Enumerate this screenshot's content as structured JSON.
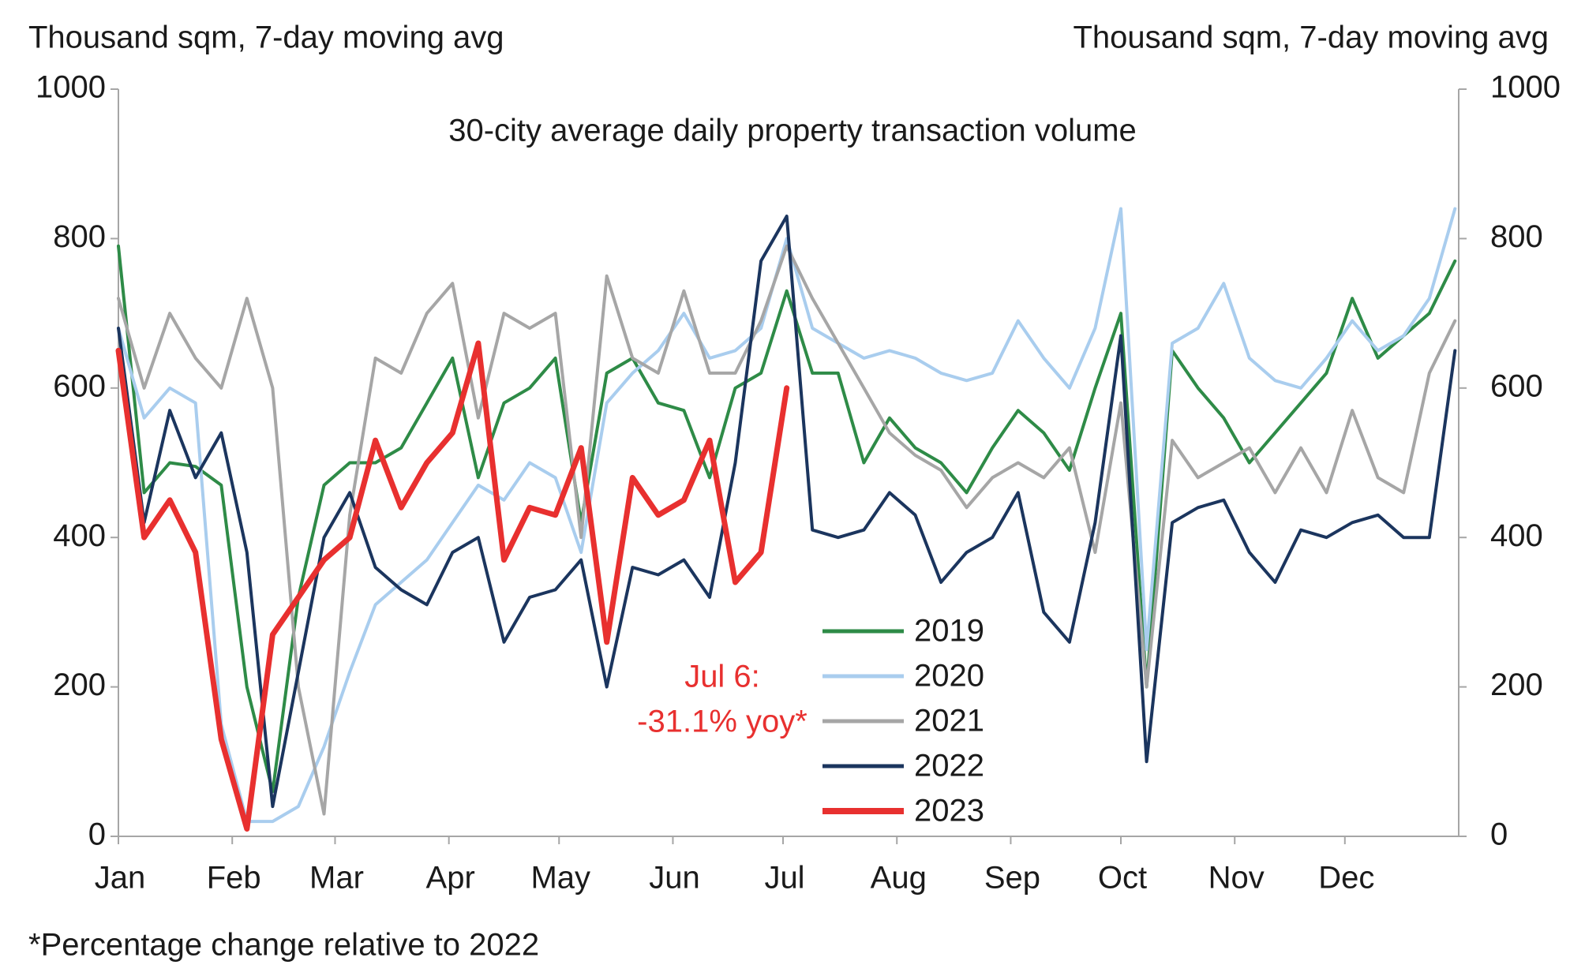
{
  "chart_data": {
    "type": "line",
    "title": "30-city average daily property transaction volume",
    "y_label": "Thousand sqm, 7-day moving avg",
    "y2_label": "Thousand sqm, 7-day moving avg",
    "footnote": "*Percentage change relative to 2022",
    "annotation": [
      "Jul 6:",
      "-31.1% yoy*"
    ],
    "annotation_color": "#e8302f",
    "xlim": [
      0,
      365
    ],
    "xticks": [
      {
        "value": 0,
        "label": "Jan"
      },
      {
        "value": 31,
        "label": "Feb"
      },
      {
        "value": 59,
        "label": "Mar"
      },
      {
        "value": 90,
        "label": "Apr"
      },
      {
        "value": 120,
        "label": "May"
      },
      {
        "value": 151,
        "label": "Jun"
      },
      {
        "value": 181,
        "label": "Jul"
      },
      {
        "value": 212,
        "label": "Aug"
      },
      {
        "value": 243,
        "label": "Sep"
      },
      {
        "value": 273,
        "label": "Oct"
      },
      {
        "value": 304,
        "label": "Nov"
      },
      {
        "value": 334,
        "label": "Dec"
      }
    ],
    "ylim": [
      0,
      1000
    ],
    "yticks": [
      0,
      200,
      400,
      600,
      800,
      1000
    ],
    "y2lim": [
      0,
      1000
    ],
    "y2ticks": [
      0,
      200,
      400,
      600,
      800,
      1000
    ],
    "x": [
      0,
      7,
      14,
      21,
      28,
      35,
      42,
      49,
      56,
      63,
      70,
      77,
      84,
      91,
      98,
      105,
      112,
      119,
      126,
      133,
      140,
      147,
      154,
      161,
      168,
      175,
      182,
      189,
      196,
      203,
      210,
      217,
      224,
      231,
      238,
      245,
      252,
      259,
      266,
      273,
      280,
      287,
      294,
      301,
      308,
      315,
      322,
      329,
      336,
      343,
      350,
      357,
      364
    ],
    "series": [
      {
        "name": "2019",
        "color": "#2e8b47",
        "values": [
          790,
          460,
          500,
          495,
          470,
          200,
          60,
          320,
          470,
          500,
          500,
          520,
          580,
          640,
          480,
          580,
          600,
          640,
          420,
          620,
          640,
          580,
          570,
          480,
          600,
          620,
          730,
          620,
          620,
          500,
          560,
          520,
          500,
          460,
          520,
          570,
          540,
          490,
          600,
          700,
          200,
          650,
          600,
          560,
          500,
          540,
          580,
          620,
          720,
          640,
          670,
          700,
          770
        ]
      },
      {
        "name": "2020",
        "color": "#a9cdee",
        "values": [
          680,
          560,
          600,
          580,
          150,
          20,
          20,
          40,
          120,
          220,
          310,
          340,
          370,
          420,
          470,
          450,
          500,
          480,
          380,
          580,
          620,
          650,
          700,
          640,
          650,
          680,
          800,
          680,
          660,
          640,
          650,
          640,
          620,
          610,
          620,
          690,
          640,
          600,
          680,
          840,
          250,
          660,
          680,
          740,
          640,
          610,
          600,
          640,
          690,
          650,
          670,
          720,
          840
        ]
      },
      {
        "name": "2021",
        "color": "#a6a6a6",
        "values": [
          720,
          600,
          700,
          640,
          600,
          720,
          600,
          200,
          30,
          430,
          640,
          620,
          700,
          740,
          560,
          700,
          680,
          700,
          400,
          750,
          640,
          620,
          730,
          620,
          620,
          690,
          790,
          720,
          660,
          600,
          540,
          510,
          490,
          440,
          480,
          500,
          480,
          520,
          380,
          580,
          200,
          530,
          480,
          500,
          520,
          460,
          520,
          460,
          570,
          480,
          460,
          620,
          690
        ]
      },
      {
        "name": "2022",
        "color": "#1b355e",
        "values": [
          680,
          420,
          570,
          480,
          540,
          380,
          40,
          220,
          400,
          460,
          360,
          330,
          310,
          380,
          400,
          260,
          320,
          330,
          370,
          200,
          360,
          350,
          370,
          320,
          500,
          770,
          830,
          410,
          400,
          410,
          460,
          430,
          340,
          380,
          400,
          460,
          300,
          260,
          420,
          670,
          100,
          420,
          440,
          450,
          380,
          340,
          410,
          400,
          420,
          430,
          400,
          400,
          650
        ]
      },
      {
        "name": "2023",
        "color": "#e8302f",
        "values": [
          650,
          400,
          450,
          380,
          130,
          10,
          270,
          320,
          370,
          400,
          530,
          440,
          500,
          540,
          660,
          370,
          440,
          430,
          520,
          260,
          480,
          430,
          450,
          530,
          340,
          380,
          600,
          null,
          null,
          null,
          null,
          null,
          null,
          null,
          null,
          null,
          null,
          null,
          null,
          null,
          null,
          null,
          null,
          null,
          null,
          null,
          null,
          null,
          null,
          null,
          null,
          null,
          null
        ]
      }
    ]
  }
}
